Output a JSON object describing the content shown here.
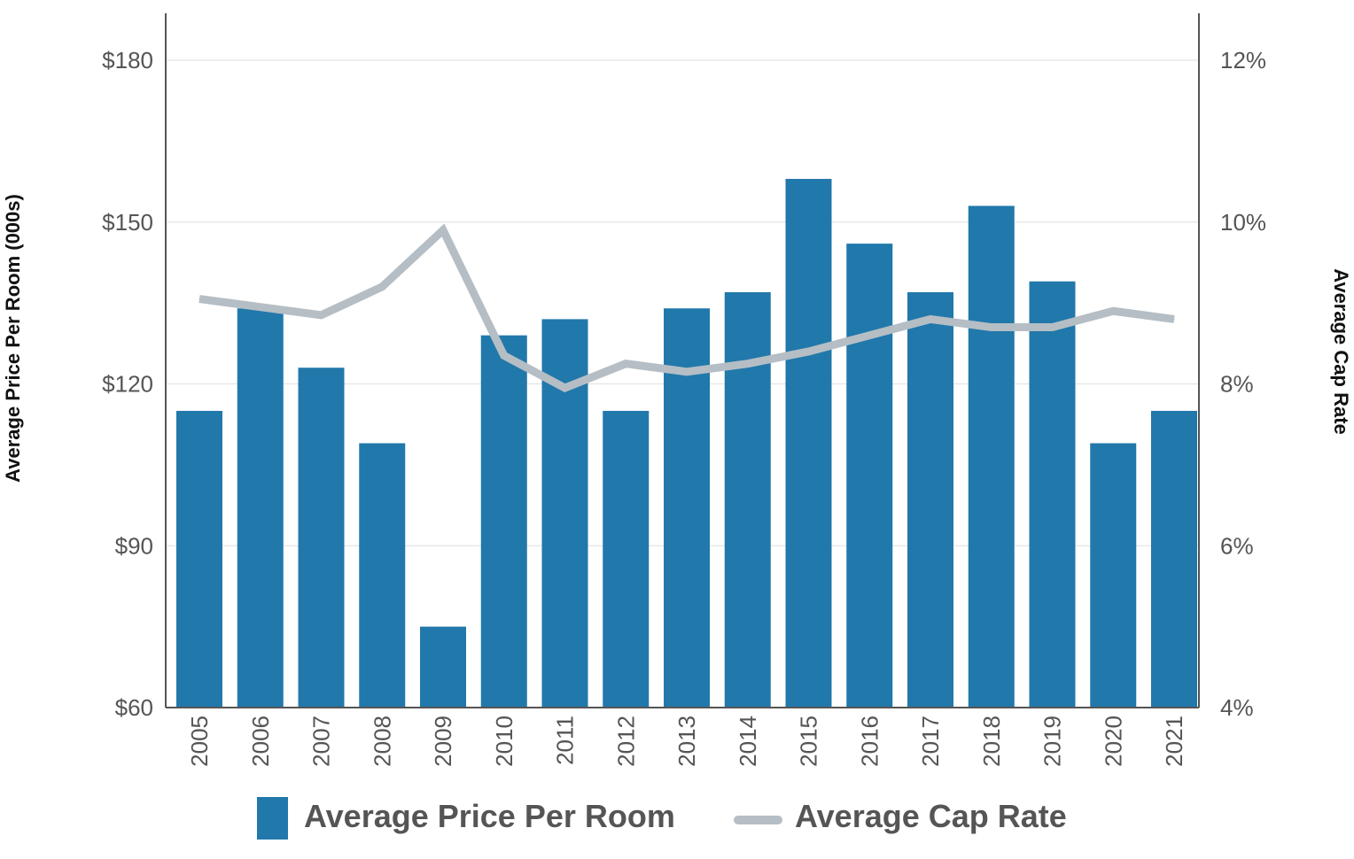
{
  "chart_data": {
    "type": "bar",
    "categories": [
      "2005",
      "2006",
      "2007",
      "2008",
      "2009",
      "2010",
      "2011",
      "2012",
      "2013",
      "2014",
      "2015",
      "2016",
      "2017",
      "2018",
      "2019",
      "2020",
      "2021"
    ],
    "series": [
      {
        "name": "Average Price Per Room",
        "type": "bar",
        "axis": "left",
        "color": "#2178ab",
        "values": [
          115,
          134,
          123,
          109,
          75,
          129,
          132,
          115,
          134,
          137,
          158,
          146,
          137,
          153,
          139,
          109,
          115
        ]
      },
      {
        "name": "Average Cap Rate",
        "type": "line",
        "axis": "right",
        "color": "#b5bec4",
        "values": [
          9.05,
          8.95,
          8.85,
          9.2,
          9.9,
          8.35,
          7.95,
          8.25,
          8.15,
          8.25,
          8.4,
          8.6,
          8.8,
          8.7,
          8.7,
          8.9,
          8.8
        ]
      }
    ],
    "ylabel": "Average Price Per Room (000s)",
    "y2label": "Average Cap Rate",
    "ylim": [
      60,
      180
    ],
    "y2lim": [
      4,
      12
    ],
    "yticks": [
      "$60",
      "$90",
      "$120",
      "$150",
      "$180"
    ],
    "y2ticks": [
      "4%",
      "6%",
      "8%",
      "10%",
      "12%"
    ],
    "ytick_values": [
      60,
      90,
      120,
      150,
      180
    ],
    "y2tick_values": [
      4,
      6,
      8,
      10,
      12
    ],
    "grid": true,
    "legend_position": "bottom"
  }
}
